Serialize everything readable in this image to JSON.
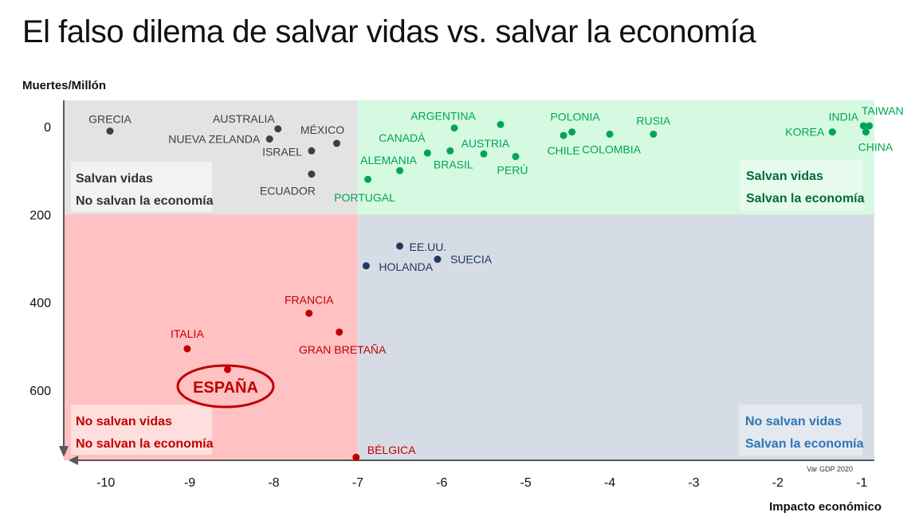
{
  "title": "El falso dilema de salvar vidas vs. salvar la economía",
  "chart_data": {
    "type": "scatter",
    "ylabel": "Muertes/Millón",
    "xlabel": "Impacto económico",
    "source_note": "Var GDP  2020",
    "xlim": [
      -10.5,
      -0.85
    ],
    "ylim": [
      -60,
      760
    ],
    "y_inverted": true,
    "x_ticks": [
      "-10",
      "-9",
      "-8",
      "-7",
      "-6",
      "-5",
      "-4",
      "-3",
      "-2",
      "-1"
    ],
    "x_tick_values": [
      -10,
      -9,
      -8,
      -7,
      -6,
      -5,
      -4,
      -3,
      -2,
      -1
    ],
    "y_ticks": [
      "0",
      "200",
      "400",
      "600"
    ],
    "y_tick_values": [
      0,
      200,
      400,
      600
    ],
    "quadrant_split": {
      "x": -7.0,
      "y": 200
    },
    "quadrant_colors": {
      "top_left": "#e3e3e3",
      "top_right": "#d6f9e2",
      "bottom_left": "#ffc1c1",
      "bottom_right": "#d6dce5"
    },
    "quadrants": [
      {
        "position": "top-left",
        "line1": "Salvan vidas",
        "line2": "No salvan la economía",
        "color": "#333333",
        "box": "#f2f2f2"
      },
      {
        "position": "top-right",
        "line1": "Salvan vidas",
        "line2": "Salvan la economía",
        "color": "#006b33",
        "box": "#e6fbee"
      },
      {
        "position": "bottom-left",
        "line1": "No salvan vidas",
        "line2": "No salvan la economía",
        "color": "#c00000",
        "box": "#ffdede"
      },
      {
        "position": "bottom-right",
        "line1": "No salvan vidas",
        "line2": "Salvan la economía",
        "color": "#2e75b6",
        "box": "#e4e9f0"
      }
    ],
    "series": [
      {
        "group": "gray",
        "color": "#404040",
        "points": [
          {
            "name": "GRECIA",
            "x": -9.95,
            "y": 10
          },
          {
            "name": "AUSTRALIA",
            "x": -7.95,
            "y": 5
          },
          {
            "name": "NUEVA ZELANDA",
            "x": -8.05,
            "y": 28
          },
          {
            "name": "MÉXICO",
            "x": -7.25,
            "y": 38
          },
          {
            "name": "ISRAEL",
            "x": -7.55,
            "y": 55
          },
          {
            "name": "ECUADOR",
            "x": -7.55,
            "y": 108
          }
        ]
      },
      {
        "group": "green",
        "color": "#00a651",
        "points": [
          {
            "name": "ARGENTINA",
            "x": -5.85,
            "y": 3
          },
          {
            "name": "",
            "x": -5.3,
            "y": -5
          },
          {
            "name": "CANADÁ",
            "x": -6.17,
            "y": 60
          },
          {
            "name": "BRASIL",
            "x": -5.9,
            "y": 55
          },
          {
            "name": "AUSTRIA",
            "x": -5.5,
            "y": 62
          },
          {
            "name": "PERÚ",
            "x": -5.12,
            "y": 68
          },
          {
            "name": "ALEMANIA",
            "x": -6.5,
            "y": 100
          },
          {
            "name": "PORTUGAL",
            "x": -6.88,
            "y": 120
          },
          {
            "name": "POLONIA",
            "x": -4.45,
            "y": 12
          },
          {
            "name": "CHILE",
            "x": -4.55,
            "y": 20
          },
          {
            "name": "COLOMBIA",
            "x": -4.0,
            "y": 17
          },
          {
            "name": "RUSIA",
            "x": -3.48,
            "y": 17
          },
          {
            "name": "INDIA",
            "x": -1.35,
            "y": 12
          },
          {
            "name": "KOREA",
            "x": -1.35,
            "y": 12
          },
          {
            "name": "TAIWAN",
            "x": -0.98,
            "y": -2
          },
          {
            "name": "",
            "x": -0.91,
            "y": -2
          },
          {
            "name": "CHINA",
            "x": -0.95,
            "y": 12
          }
        ]
      },
      {
        "group": "navy",
        "color": "#1f3864",
        "points": [
          {
            "name": "EE.UU.",
            "x": -6.5,
            "y": 272
          },
          {
            "name": "HOLANDA",
            "x": -6.9,
            "y": 317
          },
          {
            "name": "SUECIA",
            "x": -6.05,
            "y": 302
          }
        ]
      },
      {
        "group": "red",
        "color": "#c00000",
        "points": [
          {
            "name": "FRANCIA",
            "x": -7.58,
            "y": 425
          },
          {
            "name": "GRAN BRETAÑA",
            "x": -7.22,
            "y": 468
          },
          {
            "name": "ITALIA",
            "x": -9.03,
            "y": 506
          },
          {
            "name": "ESPAÑA",
            "x": -8.55,
            "y": 553
          },
          {
            "name": "BÉLGICA",
            "x": -7.02,
            "y": 753
          }
        ]
      }
    ]
  }
}
